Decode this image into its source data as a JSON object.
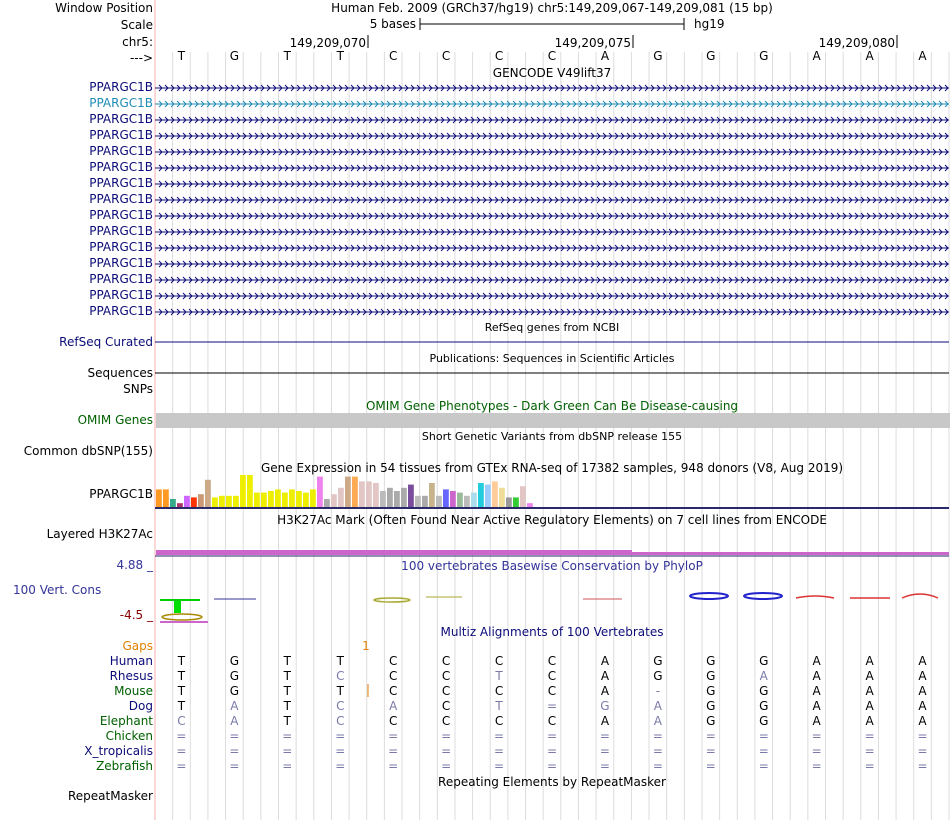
{
  "header": {
    "window_position_label": "Window Position",
    "scale_label": "Scale",
    "chrom_label": "chr5:",
    "strand_label": "--->",
    "assembly_text": "Human Feb. 2009 (GRCh37/hg19)   chr5:149,209,067-149,209,081 (15 bp)",
    "scale_text": "5 bases",
    "scale_db": "hg19",
    "coord_ticks": [
      "149,209,070",
      "149,209,075",
      "149,209,080"
    ],
    "bases": [
      "T",
      "G",
      "T",
      "T",
      "C",
      "C",
      "C",
      "C",
      "A",
      "G",
      "G",
      "G",
      "A",
      "A",
      "A"
    ]
  },
  "tracks": {
    "gencode": {
      "title": "GENCODE V49lift37",
      "genes": [
        "PPARGC1B",
        "PPARGC1B",
        "PPARGC1B",
        "PPARGC1B",
        "PPARGC1B",
        "PPARGC1B",
        "PPARGC1B",
        "PPARGC1B",
        "PPARGC1B",
        "PPARGC1B",
        "PPARGC1B",
        "PPARGC1B",
        "PPARGC1B",
        "PPARGC1B",
        "PPARGC1B"
      ],
      "highlighted_row": 1,
      "highlight_color": "#1f8cb5",
      "label_color": "#0c0c78"
    },
    "refseq": {
      "title": "RefSeq genes from NCBI",
      "label": "RefSeq Curated",
      "color": "#0c0c78"
    },
    "publications": {
      "title": "Publications: Sequences in Scientific Articles",
      "label": "Sequences"
    },
    "snps": {
      "label": "SNPs"
    },
    "omim": {
      "title": "OMIM Gene Phenotypes - Dark Green Can Be Disease-causing",
      "label": "OMIM Genes",
      "color": "#006000",
      "bar_color": "#c8c8c8"
    },
    "dbsnp": {
      "title": "Short Genetic Variants from dbSNP release 155",
      "label": "Common dbSNP(155)"
    },
    "gtex": {
      "title": "Gene Expression in 54 tissues from GTEx RNA-seq of 17382 samples, 948 donors (V8, Aug 2019)",
      "label": "PPARGC1B",
      "bars": [
        {
          "v": 0.55,
          "c": "#ff9922"
        },
        {
          "v": 0.55,
          "c": "#ff9922"
        },
        {
          "v": 0.25,
          "c": "#33aa88"
        },
        {
          "v": 0.12,
          "c": "#aa3366"
        },
        {
          "v": 0.35,
          "c": "#cc66ff"
        },
        {
          "v": 0.3,
          "c": "#ff3300"
        },
        {
          "v": 0.4,
          "c": "#cc9977"
        },
        {
          "v": 0.85,
          "c": "#ccaa88"
        },
        {
          "v": 0.3,
          "c": "#eeee00"
        },
        {
          "v": 0.35,
          "c": "#eeee00"
        },
        {
          "v": 0.35,
          "c": "#eeee00"
        },
        {
          "v": 0.35,
          "c": "#eeee00"
        },
        {
          "v": 1.0,
          "c": "#eeee00"
        },
        {
          "v": 1.0,
          "c": "#eeee00"
        },
        {
          "v": 0.45,
          "c": "#eeee00"
        },
        {
          "v": 0.45,
          "c": "#eeee00"
        },
        {
          "v": 0.5,
          "c": "#eeee00"
        },
        {
          "v": 0.55,
          "c": "#eeee00"
        },
        {
          "v": 0.45,
          "c": "#eeee00"
        },
        {
          "v": 0.55,
          "c": "#eeee00"
        },
        {
          "v": 0.5,
          "c": "#eeee00"
        },
        {
          "v": 0.45,
          "c": "#eeee00"
        },
        {
          "v": 0.55,
          "c": "#eeee00"
        },
        {
          "v": 0.95,
          "c": "#ee82ee"
        },
        {
          "v": 0.25,
          "c": "#aaaaaa"
        },
        {
          "v": 0.4,
          "c": "#e2c6c6"
        },
        {
          "v": 0.6,
          "c": "#e2c6c6"
        },
        {
          "v": 0.95,
          "c": "#ccaa88"
        },
        {
          "v": 0.95,
          "c": "#ffaa55"
        },
        {
          "v": 0.8,
          "c": "#e2c6c6"
        },
        {
          "v": 0.8,
          "c": "#e2c6c6"
        },
        {
          "v": 0.75,
          "c": "#e2c6c6"
        },
        {
          "v": 0.5,
          "c": "#bbbbbb"
        },
        {
          "v": 0.6,
          "c": "#aaaaaa"
        },
        {
          "v": 0.5,
          "c": "#aaaaaa"
        },
        {
          "v": 0.6,
          "c": "#aaaaaa"
        },
        {
          "v": 0.7,
          "c": "#7a4c9c"
        },
        {
          "v": 0.35,
          "c": "#bbbbbb"
        },
        {
          "v": 0.35,
          "c": "#aaaaaa"
        },
        {
          "v": 0.75,
          "c": "#c8b48c"
        },
        {
          "v": 0.35,
          "c": "#bbbbbb"
        },
        {
          "v": 0.55,
          "c": "#6666ff"
        },
        {
          "v": 0.5,
          "c": "#cc66cc"
        },
        {
          "v": 0.45,
          "c": "#99bb99"
        },
        {
          "v": 0.35,
          "c": "#bbbbbb"
        },
        {
          "v": 0.45,
          "c": "#aaddee"
        },
        {
          "v": 0.75,
          "c": "#22ccdd"
        },
        {
          "v": 0.7,
          "c": "#99ccff"
        },
        {
          "v": 0.8,
          "c": "#ffcc99"
        },
        {
          "v": 0.6,
          "c": "#eedd99"
        },
        {
          "v": 0.3,
          "c": "#999999"
        },
        {
          "v": 0.3,
          "c": "#33cc33"
        },
        {
          "v": 0.65,
          "c": "#e2c6c6"
        },
        {
          "v": 0.12,
          "c": "#ee82ee"
        }
      ]
    },
    "h3k27ac": {
      "title": "H3K27Ac Mark (Often Found Near Active Regulatory Elements) on 7 cell lines from ENCODE",
      "label": "Layered H3K27Ac",
      "color": "#cc66cc"
    },
    "phylop": {
      "title": "100 vertebrates Basewise Conservation by PhyloP",
      "label": "100 Vert. Cons",
      "max_label": "4.88 _",
      "min_label": "-4.5 _",
      "color": "#333399",
      "min_color": "#880000"
    },
    "multiz": {
      "title": "Multiz Alignments of 100 Vertebrates",
      "gaps_label": "Gaps",
      "gaps_marker": "1",
      "gaps_color": "#e08000",
      "species": [
        {
          "name": "Human",
          "color": "#0c0c78",
          "bases": [
            "T",
            "G",
            "T",
            "T",
            "C",
            "C",
            "C",
            "C",
            "A",
            "G",
            "G",
            "G",
            "A",
            "A",
            "A"
          ],
          "gray": []
        },
        {
          "name": "Rhesus",
          "color": "#0c0c78",
          "bases": [
            "T",
            "G",
            "T",
            "C",
            "C",
            "C",
            "T",
            "C",
            "A",
            "G",
            "G",
            "A",
            "A",
            "A",
            "A"
          ],
          "gray": [
            3,
            6,
            11
          ]
        },
        {
          "name": "Mouse",
          "color": "#006000",
          "bases": [
            "T",
            "G",
            "T",
            "T",
            "C",
            "C",
            "C",
            "C",
            "A",
            "-",
            "G",
            "G",
            "A",
            "A",
            "A"
          ],
          "gray": [
            9
          ]
        },
        {
          "name": "Dog",
          "color": "#0c0c78",
          "bases": [
            "T",
            "A",
            "T",
            "C",
            "A",
            "C",
            "T",
            "=",
            "G",
            "A",
            "G",
            "G",
            "A",
            "A",
            "A"
          ],
          "gray": [
            1,
            3,
            4,
            6,
            7,
            8,
            9
          ]
        },
        {
          "name": "Elephant",
          "color": "#006000",
          "bases": [
            "C",
            "A",
            "T",
            "C",
            "C",
            "C",
            "C",
            "C",
            "A",
            "A",
            "G",
            "G",
            "A",
            "A",
            "A"
          ],
          "gray": [
            0,
            1,
            3,
            9
          ]
        },
        {
          "name": "Chicken",
          "color": "#006000",
          "bases": [
            "=",
            "=",
            "=",
            "=",
            "=",
            "=",
            "=",
            "=",
            "=",
            "=",
            "=",
            "=",
            "=",
            "=",
            "="
          ],
          "gray": [
            0,
            1,
            2,
            3,
            4,
            5,
            6,
            7,
            8,
            9,
            10,
            11,
            12,
            13,
            14
          ]
        },
        {
          "name": "X_tropicalis",
          "color": "#0c0c78",
          "bases": [
            "=",
            "=",
            "=",
            "=",
            "=",
            "=",
            "=",
            "=",
            "=",
            "=",
            "=",
            "=",
            "=",
            "=",
            "="
          ],
          "gray": [
            0,
            1,
            2,
            3,
            4,
            5,
            6,
            7,
            8,
            9,
            10,
            11,
            12,
            13,
            14
          ]
        },
        {
          "name": "Zebrafish",
          "color": "#006000",
          "bases": [
            "=",
            "=",
            "=",
            "=",
            "=",
            "=",
            "=",
            "=",
            "=",
            "=",
            "=",
            "=",
            "=",
            "=",
            "="
          ],
          "gray": [
            0,
            1,
            2,
            3,
            4,
            5,
            6,
            7,
            8,
            9,
            10,
            11,
            12,
            13,
            14
          ]
        }
      ]
    },
    "repeatmasker": {
      "title": "Repeating Elements by RepeatMasker",
      "label": "RepeatMasker"
    }
  }
}
